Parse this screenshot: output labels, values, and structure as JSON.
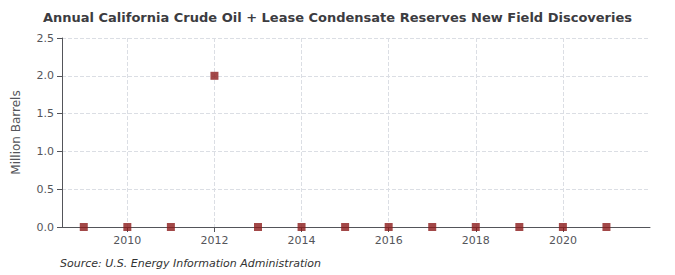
{
  "chart_data": {
    "type": "scatter",
    "title": "Annual California Crude Oil + Lease Condensate Reserves New Field Discoveries",
    "ylabel": "Million Barrels",
    "annotations": [
      "Source: U.S. Energy Information Administration"
    ],
    "x": [
      2009,
      2010,
      2011,
      2012,
      2013,
      2014,
      2015,
      2016,
      2017,
      2018,
      2019,
      2020,
      2021
    ],
    "values": [
      0.0,
      0.0,
      0.0,
      2.0,
      0.0,
      0.0,
      0.0,
      0.0,
      0.0,
      0.0,
      0.0,
      0.0,
      0.0
    ],
    "color": "#8b1a1a",
    "marker": "square",
    "xlim": [
      2008.5,
      2022
    ],
    "xticks": [
      2010,
      2012,
      2014,
      2016,
      2018,
      2020
    ],
    "ylim": [
      0,
      2.5
    ],
    "yticks": [
      {
        "value": 0,
        "label": "0.0"
      },
      0.5,
      {
        "value": 1,
        "label": "1.0"
      },
      1.5,
      {
        "value": 2,
        "label": "2.0"
      },
      2.5
    ],
    "grid": true
  }
}
